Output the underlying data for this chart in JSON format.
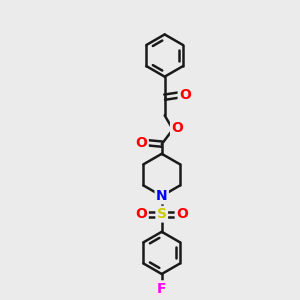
{
  "bg_color": "#ebebeb",
  "line_color": "#1a1a1a",
  "bond_width": 1.8,
  "atom_colors": {
    "O": "#ff0000",
    "N": "#0000ff",
    "S": "#cccc00",
    "F": "#ff00ff"
  },
  "font_size_atoms": 10,
  "fig_size": [
    3.0,
    3.0
  ],
  "dpi": 100
}
